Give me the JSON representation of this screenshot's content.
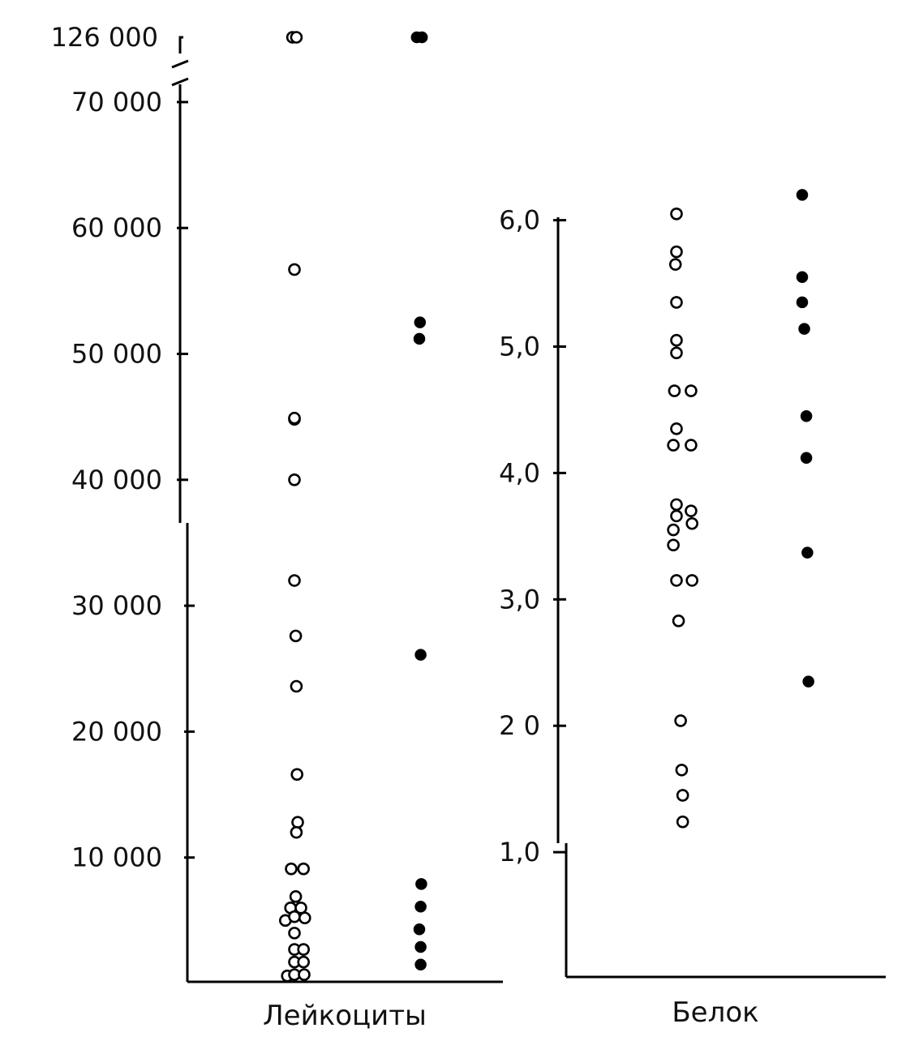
{
  "chart_data": [
    {
      "type": "scatter",
      "xlabel": "Лейкоциты",
      "ylabel": "",
      "ylim": [
        0,
        70000
      ],
      "axis_break": {
        "below": 70000,
        "above_label": "126 000"
      },
      "y_ticks": [
        {
          "value": 10000,
          "label": "10 000"
        },
        {
          "value": 20000,
          "label": "20 000"
        },
        {
          "value": 30000,
          "label": "30 000"
        },
        {
          "value": 40000,
          "label": "40 000"
        },
        {
          "value": 50000,
          "label": "50 000"
        },
        {
          "value": 60000,
          "label": "60 000"
        },
        {
          "value": 70000,
          "label": "70 000"
        }
      ],
      "series": [
        {
          "style": "open",
          "points": [
            [
              -0.3,
              126000
            ],
            [
              0.3,
              126000
            ],
            [
              0,
              56700
            ],
            [
              0,
              44800
            ],
            [
              0,
              44900
            ],
            [
              0,
              40000
            ],
            [
              0,
              32000
            ],
            [
              0.2,
              27600
            ],
            [
              0.3,
              23600
            ],
            [
              0.4,
              16600
            ],
            [
              0.5,
              12800
            ],
            [
              0.3,
              12000
            ],
            [
              -0.5,
              9100
            ],
            [
              1.4,
              9100
            ],
            [
              0.2,
              6900
            ],
            [
              -0.6,
              6000
            ],
            [
              1,
              6000
            ],
            [
              -1.4,
              5000
            ],
            [
              0,
              5300
            ],
            [
              1.6,
              5200
            ],
            [
              0,
              4000
            ],
            [
              0,
              2700
            ],
            [
              1.4,
              2700
            ],
            [
              0,
              1700
            ],
            [
              1.4,
              1700
            ],
            [
              -1.1,
              600
            ],
            [
              0,
              700
            ],
            [
              1.5,
              700
            ]
          ]
        },
        {
          "style": "filled",
          "points": [
            [
              -0.4,
              126000
            ],
            [
              0.4,
              126000
            ],
            [
              0.1,
              52500
            ],
            [
              0,
              51200
            ],
            [
              0.2,
              26100
            ],
            [
              0.3,
              7900
            ],
            [
              0.2,
              6100
            ],
            [
              0,
              4300
            ],
            [
              0.2,
              2900
            ],
            [
              0.2,
              1500
            ]
          ]
        }
      ]
    },
    {
      "type": "scatter",
      "xlabel": "Белок",
      "ylabel": "",
      "ylim": [
        0,
        6
      ],
      "y_ticks": [
        {
          "value": 1,
          "label": "1,0"
        },
        {
          "value": 2,
          "label": "2 0"
        },
        {
          "value": 3,
          "label": "3,0"
        },
        {
          "value": 4,
          "label": "4,0"
        },
        {
          "value": 5,
          "label": "5,0"
        },
        {
          "value": 6,
          "label": "6,0"
        }
      ],
      "series": [
        {
          "style": "open",
          "points": [
            [
              0,
              6.05
            ],
            [
              0,
              5.75
            ],
            [
              -0.1,
              5.65
            ],
            [
              0,
              5.35
            ],
            [
              0,
              5.05
            ],
            [
              0,
              4.95
            ],
            [
              -0.2,
              4.65
            ],
            [
              1.4,
              4.65
            ],
            [
              0,
              4.35
            ],
            [
              -0.3,
              4.22
            ],
            [
              1.4,
              4.22
            ],
            [
              0,
              3.75
            ],
            [
              1.4,
              3.7
            ],
            [
              0,
              3.66
            ],
            [
              1.5,
              3.6
            ],
            [
              -0.3,
              3.55
            ],
            [
              -0.3,
              3.43
            ],
            [
              0,
              3.15
            ],
            [
              1.5,
              3.15
            ],
            [
              0.2,
              2.83
            ],
            [
              0.4,
              2.04
            ],
            [
              0.5,
              1.65
            ],
            [
              0.6,
              1.45
            ],
            [
              0.6,
              1.24
            ]
          ]
        },
        {
          "style": "filled",
          "points": [
            [
              0,
              6.2
            ],
            [
              0,
              5.55
            ],
            [
              0,
              5.35
            ],
            [
              0.2,
              5.14
            ],
            [
              0.4,
              4.45
            ],
            [
              0.4,
              4.12
            ],
            [
              0.5,
              3.37
            ],
            [
              0.6,
              2.35
            ]
          ]
        }
      ]
    }
  ]
}
